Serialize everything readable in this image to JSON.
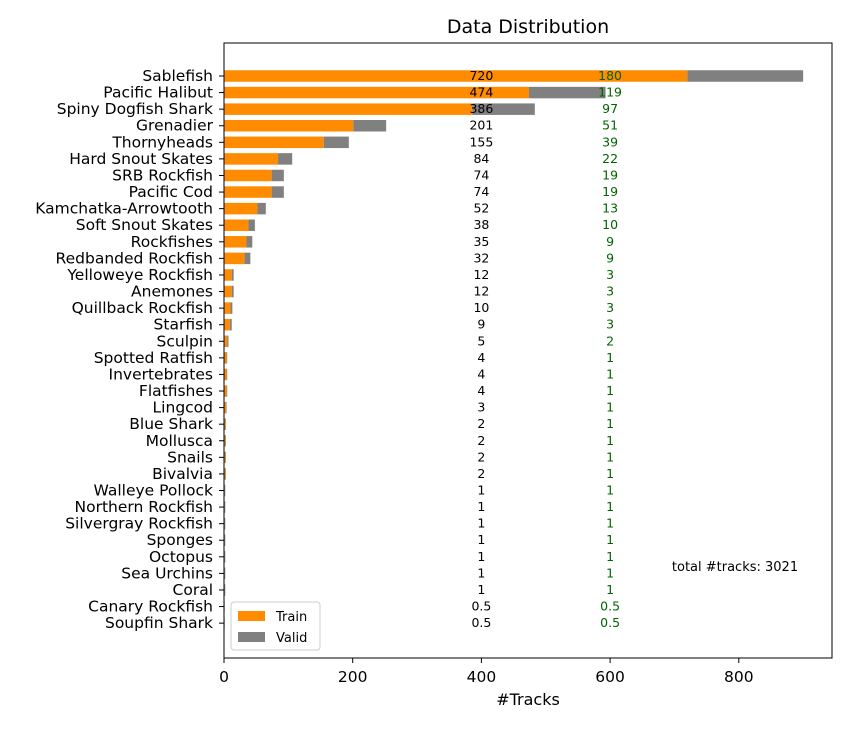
{
  "chart_data": {
    "type": "bar",
    "orientation": "horizontal",
    "stacked": true,
    "title": "Data Distribution",
    "xlabel": "#Tracks",
    "ylabel": "",
    "xlim": [
      0,
      945
    ],
    "xticks": [
      "0",
      "200",
      "400",
      "600",
      "800"
    ],
    "grid": false,
    "legend_position": "lower-left",
    "categories": [
      "Sablefish",
      "Pacific Halibut",
      "Spiny Dogfish Shark",
      "Grenadier",
      "Thornyheads",
      "Hard Snout Skates",
      "SRB Rockfish",
      "Pacific Cod",
      "Kamchatka-Arrowtooth",
      "Soft Snout Skates",
      "Rockfishes",
      "Redbanded Rockfish",
      "Yelloweye Rockfish",
      "Anemones",
      "Quillback Rockfish",
      "Starfish",
      "Sculpin",
      "Spotted Ratfish",
      "Invertebrates",
      "Flatfishes",
      "Lingcod",
      "Blue Shark",
      "Mollusca",
      "Snails",
      "Bivalvia",
      "Walleye Pollock",
      "Northern Rockfish",
      "Silvergray Rockfish",
      "Sponges",
      "Octopus",
      "Sea Urchins",
      "Coral",
      "Canary Rockfish",
      "Soupfin Shark"
    ],
    "series": [
      {
        "name": "Train",
        "color": "#ff8c00",
        "values": [
          720,
          474,
          386,
          201,
          155,
          84,
          74,
          74,
          52,
          38,
          35,
          32,
          12,
          12,
          10,
          9,
          5,
          4,
          4,
          4,
          3,
          2,
          2,
          2,
          2,
          1,
          1,
          1,
          1,
          1,
          1,
          1,
          0.5,
          0.5
        ]
      },
      {
        "name": "Valid",
        "color": "#808080",
        "values": [
          180,
          119,
          97,
          51,
          39,
          22,
          19,
          19,
          13,
          10,
          9,
          9,
          3,
          3,
          3,
          3,
          2,
          1,
          1,
          1,
          1,
          1,
          1,
          1,
          1,
          1,
          1,
          1,
          1,
          1,
          1,
          1,
          0.5,
          0.5
        ]
      }
    ],
    "train_labels": [
      "720",
      "474",
      "386",
      "201",
      "155",
      "84",
      "74",
      "74",
      "52",
      "38",
      "35",
      "32",
      "12",
      "12",
      "10",
      "9",
      "5",
      "4",
      "4",
      "4",
      "3",
      "2",
      "2",
      "2",
      "2",
      "1",
      "1",
      "1",
      "1",
      "1",
      "1",
      "1",
      "0.5",
      "0.5"
    ],
    "valid_labels": [
      "180",
      "119",
      "97",
      "51",
      "39",
      "22",
      "19",
      "19",
      "13",
      "10",
      "9",
      "9",
      "3",
      "3",
      "3",
      "3",
      "2",
      "1",
      "1",
      "1",
      "1",
      "1",
      "1",
      "1",
      "1",
      "1",
      "1",
      "1",
      "1",
      "1",
      "1",
      "1",
      "0.5",
      "0.5"
    ],
    "train_label_x": 400,
    "valid_label_x": 600,
    "train_label_color": "#000000",
    "valid_label_color": "#006400",
    "annotation": "total #tracks: 3021"
  }
}
